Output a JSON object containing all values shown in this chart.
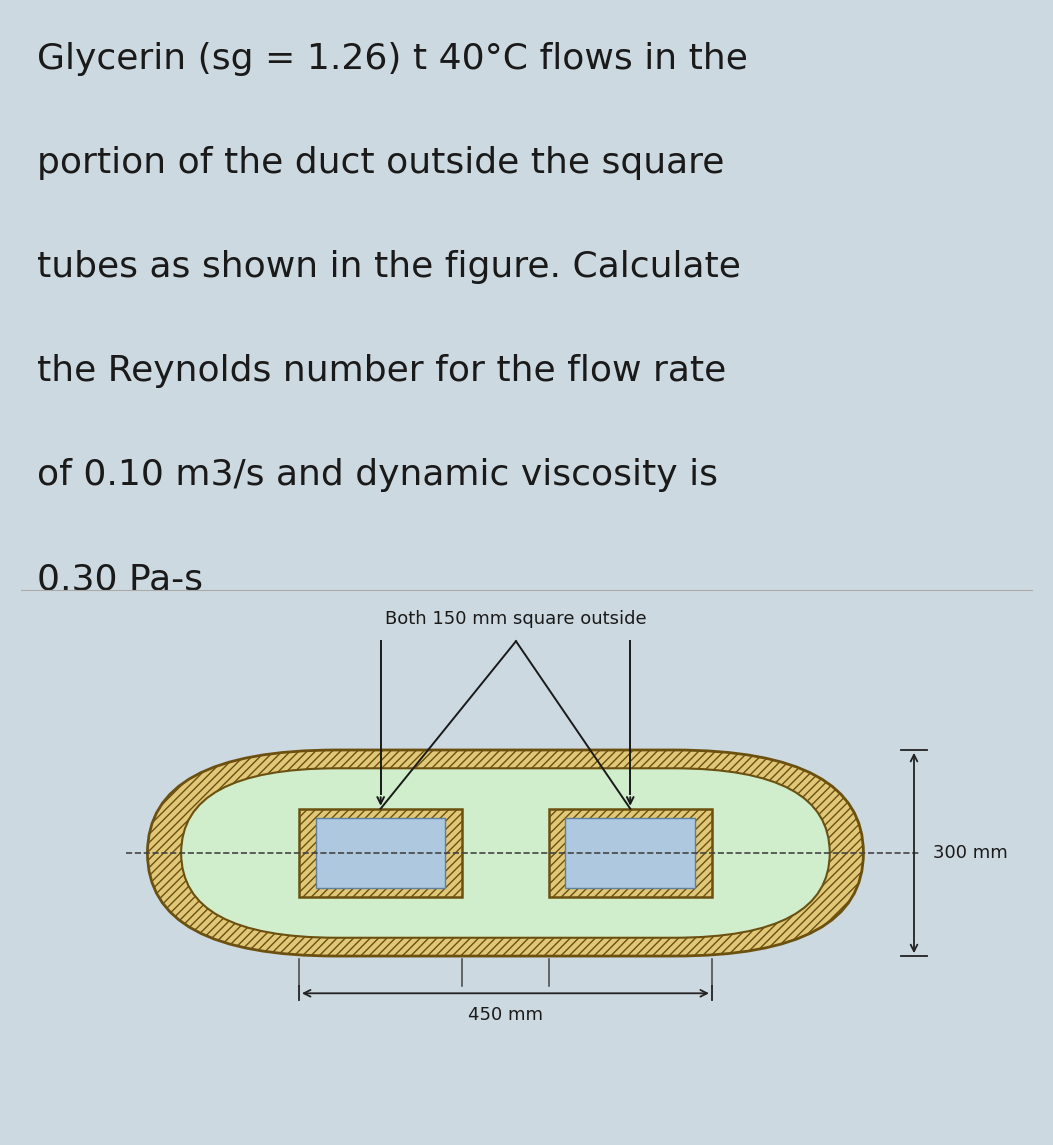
{
  "bg_color": "#cdd9e0",
  "fig_bottom_bg": "#e8eef2",
  "text_lines": [
    "Glycerin (sg = 1.26) t 40°C flows in the",
    "portion of the duct outside the square",
    "tubes as shown in the figure. Calculate",
    "the Reynolds number for the flow rate",
    "of 0.10 m3/s and dynamic viscosity is",
    "0.30 Pa-s"
  ],
  "text_fontsize": 26,
  "text_color": "#1a1a1a",
  "label_both": "Both 150 mm square outside",
  "label_300": "300 mm",
  "label_450": "450 mm",
  "outer_duct_fill": "#e0c878",
  "outer_duct_edge": "#6b5010",
  "inner_fluid_fill": "#d0eecc",
  "tube_wall_fill": "#e0c878",
  "tube_wall_edge": "#6b5010",
  "tube_interior_fill": "#aec8e0",
  "tube_interior_edge": "#6080a0",
  "dim_color": "#222222",
  "label_fontsize": 13,
  "dim_fontsize": 13
}
